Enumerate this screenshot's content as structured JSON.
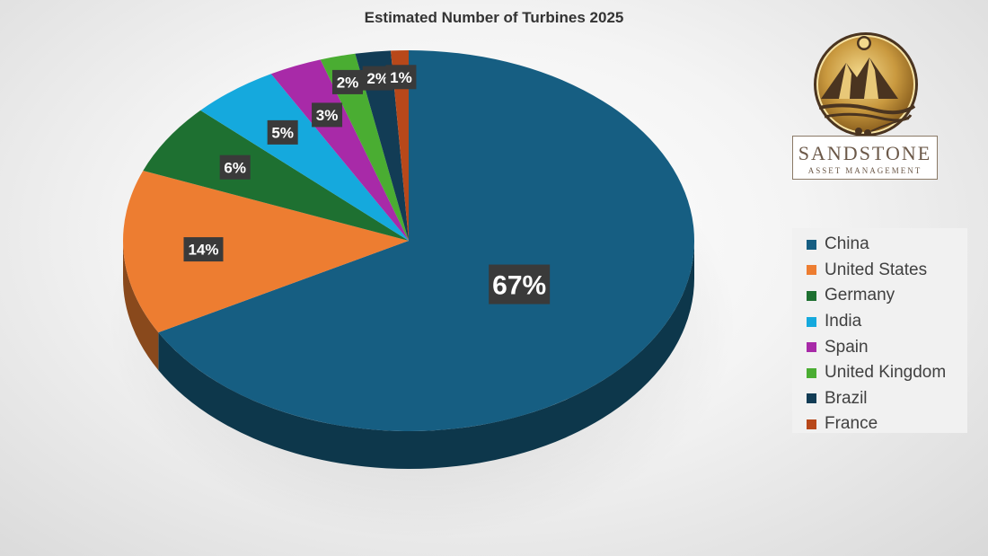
{
  "chart_data": {
    "type": "pie",
    "title": "Estimated Number of Turbines 2025",
    "three_d": true,
    "start_angle_deg": 0,
    "direction": "clockwise",
    "legend_position": "right",
    "slices": [
      {
        "name": "China",
        "value": 67,
        "label": "67%",
        "color": "#165e82"
      },
      {
        "name": "United States",
        "value": 14,
        "label": "14%",
        "color": "#ed7d31"
      },
      {
        "name": "Germany",
        "value": 6,
        "label": "6%",
        "color": "#1e7031"
      },
      {
        "name": "India",
        "value": 5,
        "label": "5%",
        "color": "#15a9dd"
      },
      {
        "name": "Spain",
        "value": 3,
        "label": "3%",
        "color": "#a82aa8"
      },
      {
        "name": "United Kingdom",
        "value": 2,
        "label": "2%",
        "color": "#4aad32"
      },
      {
        "name": "Brazil",
        "value": 2,
        "label": "2%",
        "color": "#123c55"
      },
      {
        "name": "France",
        "value": 1,
        "label": "1%",
        "color": "#b8481a"
      }
    ]
  },
  "logo": {
    "name": "SANDSTONE",
    "subtitle": "ASSET MANAGEMENT"
  }
}
